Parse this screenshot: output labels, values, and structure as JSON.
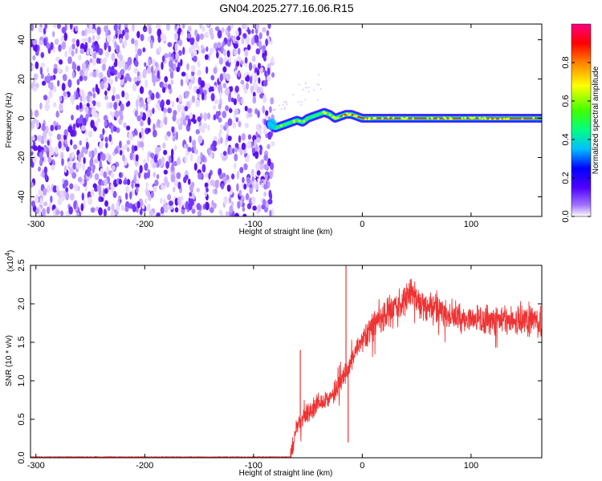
{
  "figure": {
    "title": "GN04.2025.277.16.06.R15"
  },
  "chart_data": [
    {
      "type": "heatmap",
      "name": "spectrogram",
      "xlabel": "Height of straight line (km)",
      "ylabel": "Frequency (Hz)",
      "xlim": [
        -305,
        165
      ],
      "ylim": [
        -50,
        48
      ],
      "xticks": [
        -300,
        -200,
        -100,
        0,
        100
      ],
      "xticklabels": [
        "-300",
        "-200",
        "-100",
        "0",
        "100"
      ],
      "yticks": [
        -40,
        -20,
        0,
        20,
        40
      ],
      "yticklabels": [
        "-40",
        "-20",
        "0",
        "20",
        "40"
      ],
      "noise_region_x": [
        -305,
        -82
      ],
      "signal_track": {
        "x": [
          -85,
          -80,
          -75,
          -70,
          -65,
          -60,
          -55,
          -50,
          -45,
          -40,
          -35,
          -30,
          -25,
          -20,
          -15,
          -10,
          -5,
          0,
          20,
          40,
          60,
          80,
          100,
          120,
          140,
          165
        ],
        "y": [
          -3,
          -5,
          -4,
          -3,
          -2,
          -1,
          -2,
          0,
          1,
          2,
          3,
          2,
          0,
          1,
          2,
          2,
          1,
          0,
          0,
          0,
          0,
          0,
          0,
          0,
          0,
          0
        ]
      },
      "colorbar": {
        "label": "Normalized spectral amplitude",
        "range": [
          0,
          1
        ],
        "ticks": [
          0.0,
          0.2,
          0.4,
          0.6,
          0.8
        ],
        "ticklabels": [
          "0.0",
          "0.2",
          "0.4",
          "0.6",
          "0.8"
        ]
      }
    },
    {
      "type": "line",
      "name": "snr",
      "xlabel": "Height of straight line (km)",
      "ylabel": "SNR (10 * v/v)",
      "scale_label": "(x10",
      "scale_exponent": "4",
      "scale_suffix": ")",
      "xlim": [
        -305,
        165
      ],
      "ylim": [
        0,
        2.5
      ],
      "xticks": [
        -300,
        -200,
        -100,
        0,
        100
      ],
      "xticklabels": [
        "-300",
        "-200",
        "-100",
        "0",
        "100"
      ],
      "yticks": [
        0.0,
        0.5,
        1.0,
        1.5,
        2.0,
        2.5
      ],
      "yticklabels": [
        "0.0",
        "0.5",
        "1.0",
        "1.5",
        "2.0",
        "2.5"
      ],
      "color": "#ee3333",
      "series": {
        "x": [
          -305,
          -150,
          -66,
          -65,
          -60,
          -55,
          -50,
          -40,
          -30,
          -20,
          -15,
          -10,
          -5,
          0,
          10,
          20,
          30,
          40,
          45,
          50,
          60,
          70,
          80,
          90,
          100,
          120,
          140,
          150,
          165
        ],
        "y": [
          0.01,
          0.01,
          0.01,
          0.1,
          0.4,
          0.5,
          0.6,
          0.7,
          0.8,
          0.95,
          1.1,
          1.25,
          1.45,
          1.5,
          1.7,
          1.85,
          1.95,
          2.05,
          2.15,
          2.05,
          1.95,
          1.9,
          1.85,
          1.82,
          1.8,
          1.78,
          1.8,
          1.78,
          1.78
        ]
      },
      "spikes": [
        {
          "x": -57,
          "y": 1.4
        },
        {
          "x": -15,
          "y": 2.5
        },
        {
          "x": -13,
          "y": 0.2
        }
      ]
    }
  ]
}
